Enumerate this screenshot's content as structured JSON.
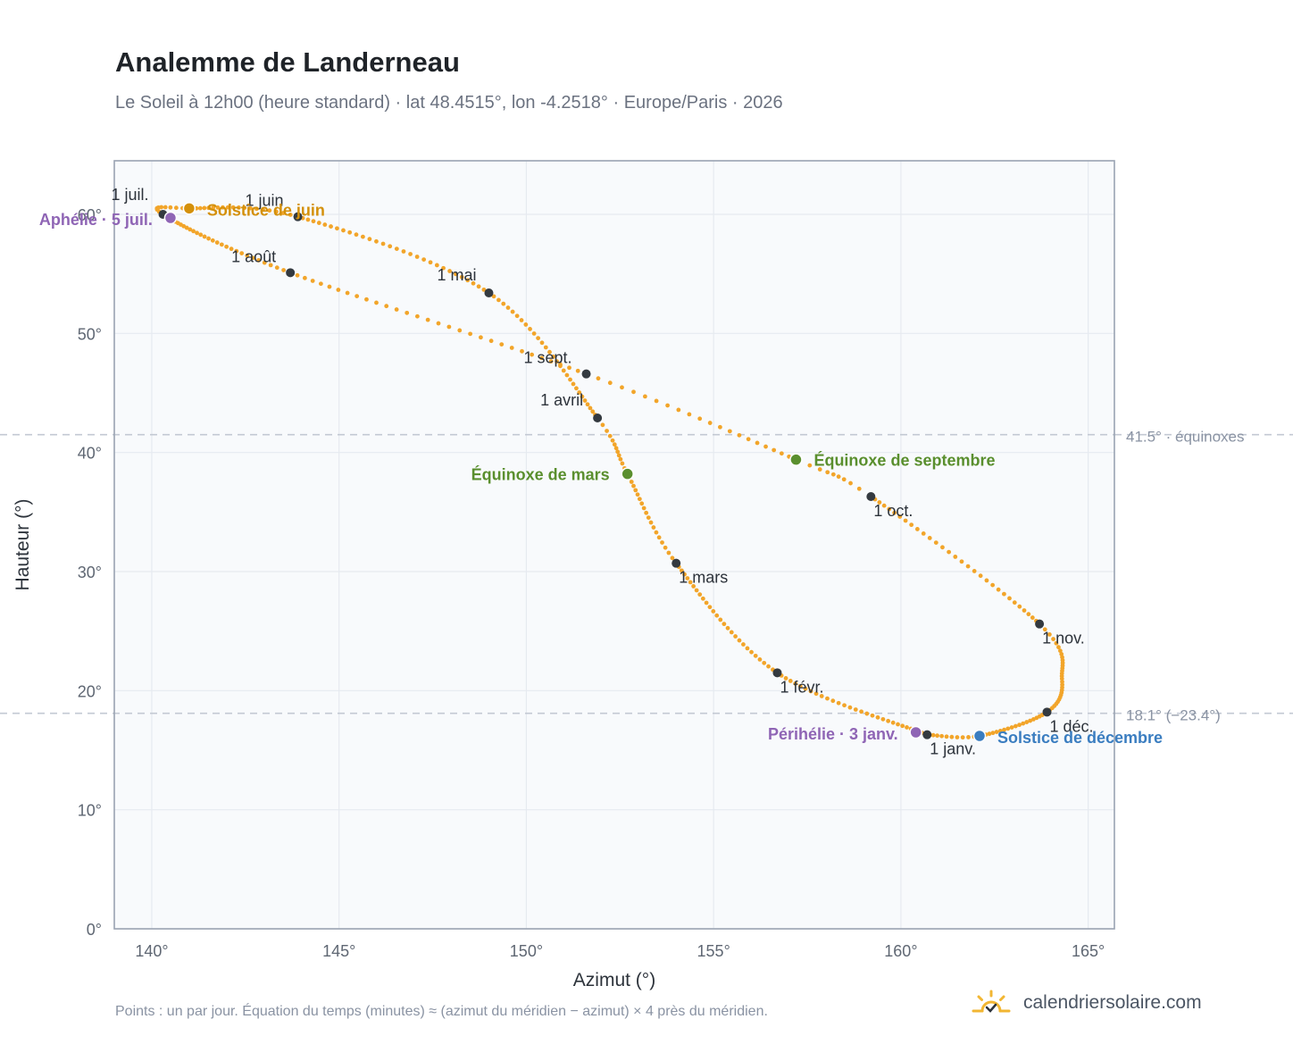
{
  "header": {
    "title": "Analemme de Landerneau",
    "subtitle": "Le Soleil à 12h00 (heure standard) · lat 48.4515°, lon -4.2518° · Europe/Paris · 2026"
  },
  "footer": {
    "note": "Points : un par jour. Équation du temps (minutes) ≈ (azimut du méridien − azimut) × 4 près du méridien.",
    "brand": "calendriersolaire.com",
    "brand_icon": "sun-icon"
  },
  "colors": {
    "curve": "#f2a52a",
    "month_marker": "#343a40",
    "june_solstice": "#d4900a",
    "december_solstice": "#3a7dc0",
    "equinox": "#5a8f2e",
    "apsis": "#8f65b5",
    "plot_bg": "#f8fafc",
    "grid": "#e6eaf0",
    "frame": "#9aa3b2",
    "ref_line": "#c3c9d3"
  },
  "chart_data": {
    "type": "scatter",
    "xlabel": "Azimut (°)",
    "ylabel": "Hauteur (°)",
    "xlim": [
      139,
      165.7
    ],
    "ylim": [
      0,
      64.5
    ],
    "x_ticks": [
      140,
      145,
      150,
      155,
      160,
      165
    ],
    "x_tick_labels": [
      "140°",
      "145°",
      "150°",
      "155°",
      "160°",
      "165°"
    ],
    "y_ticks": [
      0,
      10,
      20,
      30,
      40,
      50,
      60
    ],
    "y_tick_labels": [
      "0°",
      "10°",
      "20°",
      "30°",
      "40°",
      "50°",
      "60°"
    ],
    "grid": true,
    "reference_lines": [
      {
        "y": 41.5,
        "label": "41.5° · équinoxes"
      },
      {
        "y": 18.1,
        "label": "18.1° (−23.4°)"
      }
    ],
    "curve_anchors": [
      {
        "doy": 0,
        "x": 160.7,
        "y": 16.3
      },
      {
        "doy": 31,
        "x": 156.7,
        "y": 21.5
      },
      {
        "doy": 59,
        "x": 154.0,
        "y": 30.7
      },
      {
        "doy": 78,
        "x": 152.7,
        "y": 38.2
      },
      {
        "doy": 90,
        "x": 151.9,
        "y": 42.9
      },
      {
        "doy": 120,
        "x": 149.0,
        "y": 53.4
      },
      {
        "doy": 151,
        "x": 143.9,
        "y": 59.8
      },
      {
        "doy": 171,
        "x": 141.0,
        "y": 60.5
      },
      {
        "doy": 181,
        "x": 140.3,
        "y": 60.0
      },
      {
        "doy": 212,
        "x": 143.7,
        "y": 55.1
      },
      {
        "doy": 243,
        "x": 151.6,
        "y": 46.6
      },
      {
        "doy": 264,
        "x": 157.2,
        "y": 39.4
      },
      {
        "doy": 273,
        "x": 159.2,
        "y": 36.3
      },
      {
        "doy": 304,
        "x": 163.7,
        "y": 25.6
      },
      {
        "doy": 320,
        "x": 164.3,
        "y": 21.0
      },
      {
        "doy": 334,
        "x": 163.9,
        "y": 18.2
      },
      {
        "doy": 354,
        "x": 162.1,
        "y": 16.2
      },
      {
        "doy": 365,
        "x": 160.7,
        "y": 16.3
      }
    ],
    "month_markers": [
      {
        "label": "1 janv.",
        "x": 160.7,
        "y": 16.3
      },
      {
        "label": "1 févr.",
        "x": 156.7,
        "y": 21.5
      },
      {
        "label": "1 mars",
        "x": 154.0,
        "y": 30.7
      },
      {
        "label": "1 avril",
        "x": 151.9,
        "y": 42.9
      },
      {
        "label": "1 mai",
        "x": 149.0,
        "y": 53.4
      },
      {
        "label": "1 juin",
        "x": 143.9,
        "y": 59.8
      },
      {
        "label": "1 juil.",
        "x": 140.3,
        "y": 60.0
      },
      {
        "label": "1 août",
        "x": 143.7,
        "y": 55.1
      },
      {
        "label": "1 sept.",
        "x": 151.6,
        "y": 46.6
      },
      {
        "label": "1 oct.",
        "x": 159.2,
        "y": 36.3
      },
      {
        "label": "1 nov.",
        "x": 163.7,
        "y": 25.6
      },
      {
        "label": "1 déc.",
        "x": 163.9,
        "y": 18.2
      }
    ],
    "events": [
      {
        "label": "Solstice de juin",
        "x": 141.0,
        "y": 60.5,
        "kind": "june_solstice"
      },
      {
        "label": "Aphélie · 5 juil.",
        "x": 140.5,
        "y": 59.7,
        "kind": "apsis"
      },
      {
        "label": "Équinoxe de mars",
        "x": 152.7,
        "y": 38.2,
        "kind": "equinox"
      },
      {
        "label": "Équinoxe de septembre",
        "x": 157.2,
        "y": 39.4,
        "kind": "equinox"
      },
      {
        "label": "Périhélie · 3 janv.",
        "x": 160.4,
        "y": 16.5,
        "kind": "apsis"
      },
      {
        "label": "Solstice de décembre",
        "x": 162.1,
        "y": 16.2,
        "kind": "december_solstice"
      }
    ]
  }
}
